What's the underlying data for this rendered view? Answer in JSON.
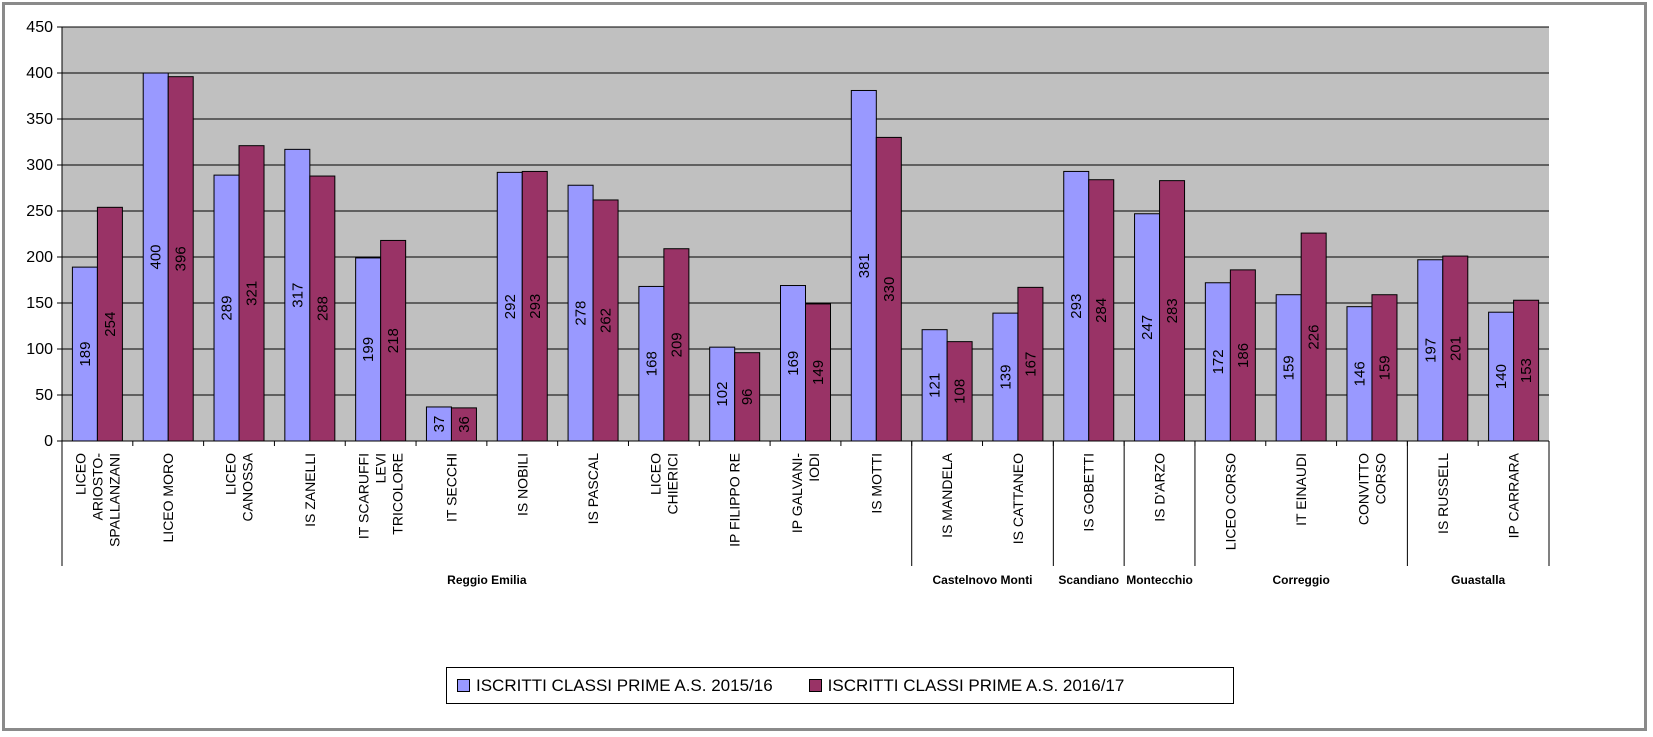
{
  "chart_data": {
    "type": "bar",
    "categories": [
      [
        "LICEO",
        "ARIOSTO-",
        "SPALLANZANI"
      ],
      [
        "LICEO MORO"
      ],
      [
        "LICEO",
        "CANOSSA"
      ],
      [
        "IS ZANELLI"
      ],
      [
        "IT SCARUFFI",
        "LEVI",
        "TRICOLORE"
      ],
      [
        "IT SECCHI"
      ],
      [
        "IS NOBILI"
      ],
      [
        "IS PASCAL"
      ],
      [
        "LICEO",
        "CHIERICI"
      ],
      [
        "IP FILIPPO RE"
      ],
      [
        "IP GALVANI-",
        "IODI"
      ],
      [
        "IS MOTTI"
      ],
      [
        "IS MANDELA"
      ],
      [
        "IS CATTANEO"
      ],
      [
        "IS GOBETTI"
      ],
      [
        "IS D'ARZO"
      ],
      [
        "LICEO CORSO"
      ],
      [
        "IT EINAUDI"
      ],
      [
        "CONVITTO",
        "CORSO"
      ],
      [
        "IS RUSSELL"
      ],
      [
        "IP CARRARA"
      ]
    ],
    "groups": [
      {
        "name": "Reggio Emilia",
        "count": 12
      },
      {
        "name": "Castelnovo Monti",
        "count": 2
      },
      {
        "name": "Scandiano",
        "count": 1
      },
      {
        "name": "Montecchio",
        "count": 1
      },
      {
        "name": "Correggio",
        "count": 3
      },
      {
        "name": "Guastalla",
        "count": 2
      }
    ],
    "series": [
      {
        "name": "ISCRITTI CLASSI PRIME A.S. 2015/16",
        "color": "#9999ff",
        "values": [
          189,
          400,
          289,
          317,
          199,
          37,
          292,
          278,
          168,
          102,
          169,
          381,
          121,
          139,
          293,
          247,
          172,
          159,
          146,
          197,
          140
        ]
      },
      {
        "name": "ISCRITTI CLASSI PRIME A.S. 2016/17",
        "color": "#993366",
        "values": [
          254,
          396,
          321,
          288,
          218,
          36,
          293,
          262,
          209,
          96,
          149,
          330,
          108,
          167,
          284,
          283,
          186,
          226,
          159,
          201,
          153
        ]
      }
    ],
    "ylim": [
      0,
      450
    ],
    "yticks": [
      0,
      50,
      100,
      150,
      200,
      250,
      300,
      350,
      400,
      450
    ],
    "grid": true,
    "plot_background": "#c0c0c0",
    "legend_position": "bottom",
    "title": "",
    "xlabel": "",
    "ylabel": ""
  }
}
